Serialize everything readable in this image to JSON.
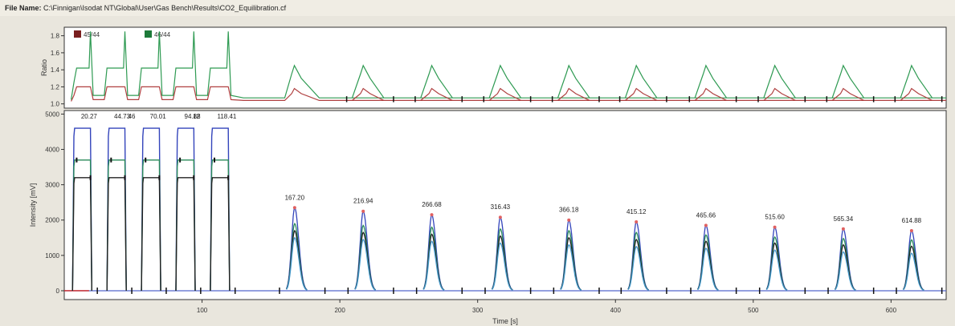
{
  "file_bar": {
    "label": "File Name:",
    "path": "C:\\Finnigan\\Isodat NT\\Global\\User\\Gas Bench\\Results\\CO2_Equilibration.cf"
  },
  "chart_data": [
    {
      "type": "line",
      "name": "ratio-panel",
      "ylabel": "Ratio",
      "ylim": [
        0.95,
        1.9
      ],
      "yticks": [
        1.0,
        1.2,
        1.4,
        1.6,
        1.8
      ],
      "xlim": [
        0,
        640
      ],
      "legend_position": "top-left",
      "legend": [
        {
          "label": "45/44",
          "color": "#7a1f1f"
        },
        {
          "label": "46/44",
          "color": "#1e7a3a"
        }
      ],
      "series": [
        {
          "name": "45/44",
          "color": "#b04040",
          "points": [
            [
              5,
              1.03
            ],
            [
              7,
              1.1
            ],
            [
              9,
              1.2
            ],
            [
              19,
              1.2
            ],
            [
              21,
              1.05
            ],
            [
              29,
              1.05
            ],
            [
              31,
              1.2
            ],
            [
              44,
              1.2
            ],
            [
              46,
              1.05
            ],
            [
              54,
              1.05
            ],
            [
              56,
              1.2
            ],
            [
              69,
              1.2
            ],
            [
              71,
              1.05
            ],
            [
              79,
              1.05
            ],
            [
              81,
              1.2
            ],
            [
              94,
              1.2
            ],
            [
              96,
              1.05
            ],
            [
              104,
              1.05
            ],
            [
              106,
              1.2
            ],
            [
              119,
              1.2
            ],
            [
              121,
              1.05
            ],
            [
              130,
              1.04
            ],
            [
              160,
              1.04
            ],
            [
              165,
              1.12
            ],
            [
              167,
              1.18
            ],
            [
              172,
              1.12
            ],
            [
              185,
              1.04
            ],
            [
              640,
              1.04
            ]
          ]
        },
        {
          "name": "46/44",
          "color": "#2e9a52",
          "points": [
            [
              5,
              1.05
            ],
            [
              7,
              1.25
            ],
            [
              9,
              1.42
            ],
            [
              18,
              1.42
            ],
            [
              19,
              1.85
            ],
            [
              21,
              1.1
            ],
            [
              29,
              1.1
            ],
            [
              31,
              1.42
            ],
            [
              43,
              1.42
            ],
            [
              44,
              1.85
            ],
            [
              46,
              1.1
            ],
            [
              54,
              1.1
            ],
            [
              56,
              1.42
            ],
            [
              68,
              1.42
            ],
            [
              69,
              1.85
            ],
            [
              71,
              1.1
            ],
            [
              79,
              1.1
            ],
            [
              81,
              1.42
            ],
            [
              93,
              1.42
            ],
            [
              94,
              1.85
            ],
            [
              96,
              1.1
            ],
            [
              104,
              1.1
            ],
            [
              106,
              1.42
            ],
            [
              118,
              1.42
            ],
            [
              119,
              1.85
            ],
            [
              121,
              1.1
            ],
            [
              130,
              1.07
            ],
            [
              160,
              1.07
            ],
            [
              165,
              1.35
            ],
            [
              167,
              1.45
            ],
            [
              172,
              1.3
            ],
            [
              185,
              1.07
            ],
            [
              640,
              1.07
            ]
          ]
        }
      ],
      "peaks_x": [
        167.2,
        216.94,
        266.68,
        316.43,
        366.18,
        415.12,
        465.66,
        515.6,
        565.34,
        614.88
      ]
    },
    {
      "type": "line",
      "name": "intensity-panel",
      "xlabel": "Time [s]",
      "ylabel": "Intensity [mV]",
      "ylim": [
        -250,
        5100
      ],
      "yticks": [
        0,
        1000,
        2000,
        3000,
        4000,
        5000
      ],
      "xlim": [
        0,
        640
      ],
      "xticks": [
        100,
        200,
        300,
        400,
        500,
        600
      ],
      "reference_peaks": [
        {
          "x_start": 7,
          "x_end": 19,
          "heights": [
            4600,
            3700,
            3200
          ]
        },
        {
          "x_start": 32,
          "x_end": 44,
          "heights": [
            4600,
            3700,
            3200
          ]
        },
        {
          "x_start": 57,
          "x_end": 69,
          "heights": [
            4600,
            3700,
            3200
          ]
        },
        {
          "x_start": 82,
          "x_end": 94,
          "heights": [
            4600,
            3700,
            3200
          ]
        },
        {
          "x_start": 107,
          "x_end": 119,
          "heights": [
            4600,
            3700,
            3200
          ]
        }
      ],
      "reference_labels": [
        {
          "x": 18,
          "text": "20.27"
        },
        {
          "x": 42,
          "text": "44.73"
        },
        {
          "x": 49,
          "text": "46"
        },
        {
          "x": 68,
          "text": "70.01"
        },
        {
          "x": 93,
          "text": "94.88"
        },
        {
          "x": 96,
          "text": "12"
        },
        {
          "x": 118,
          "text": "118.41"
        }
      ],
      "sample_peaks": [
        {
          "x": 167.2,
          "label": "167.20",
          "heights": [
            2350,
            1900,
            1700,
            1500
          ]
        },
        {
          "x": 216.94,
          "label": "216.94",
          "heights": [
            2250,
            1850,
            1650,
            1450
          ]
        },
        {
          "x": 266.68,
          "label": "266.68",
          "heights": [
            2150,
            1800,
            1600,
            1400
          ]
        },
        {
          "x": 316.43,
          "label": "316.43",
          "heights": [
            2080,
            1750,
            1550,
            1350
          ]
        },
        {
          "x": 366.18,
          "label": "366.18",
          "heights": [
            2000,
            1700,
            1500,
            1300
          ]
        },
        {
          "x": 415.12,
          "label": "415.12",
          "heights": [
            1950,
            1650,
            1450,
            1250
          ]
        },
        {
          "x": 465.66,
          "label": "465.66",
          "heights": [
            1850,
            1580,
            1400,
            1200
          ]
        },
        {
          "x": 515.6,
          "label": "515.60",
          "heights": [
            1800,
            1520,
            1350,
            1150
          ]
        },
        {
          "x": 565.34,
          "label": "565.34",
          "heights": [
            1750,
            1480,
            1300,
            1100
          ]
        },
        {
          "x": 614.88,
          "label": "614.88",
          "heights": [
            1700,
            1440,
            1260,
            1060
          ]
        }
      ],
      "series_colors": [
        "#3344bb",
        "#2a8a5a",
        "#222222",
        "#4499cc"
      ],
      "baseline_color": "#5566cc",
      "start_marker_color": "#cc2222"
    }
  ],
  "colors": {
    "background": "#e9e6dd",
    "plot_background": "#ffffff",
    "frame": "#333333"
  }
}
